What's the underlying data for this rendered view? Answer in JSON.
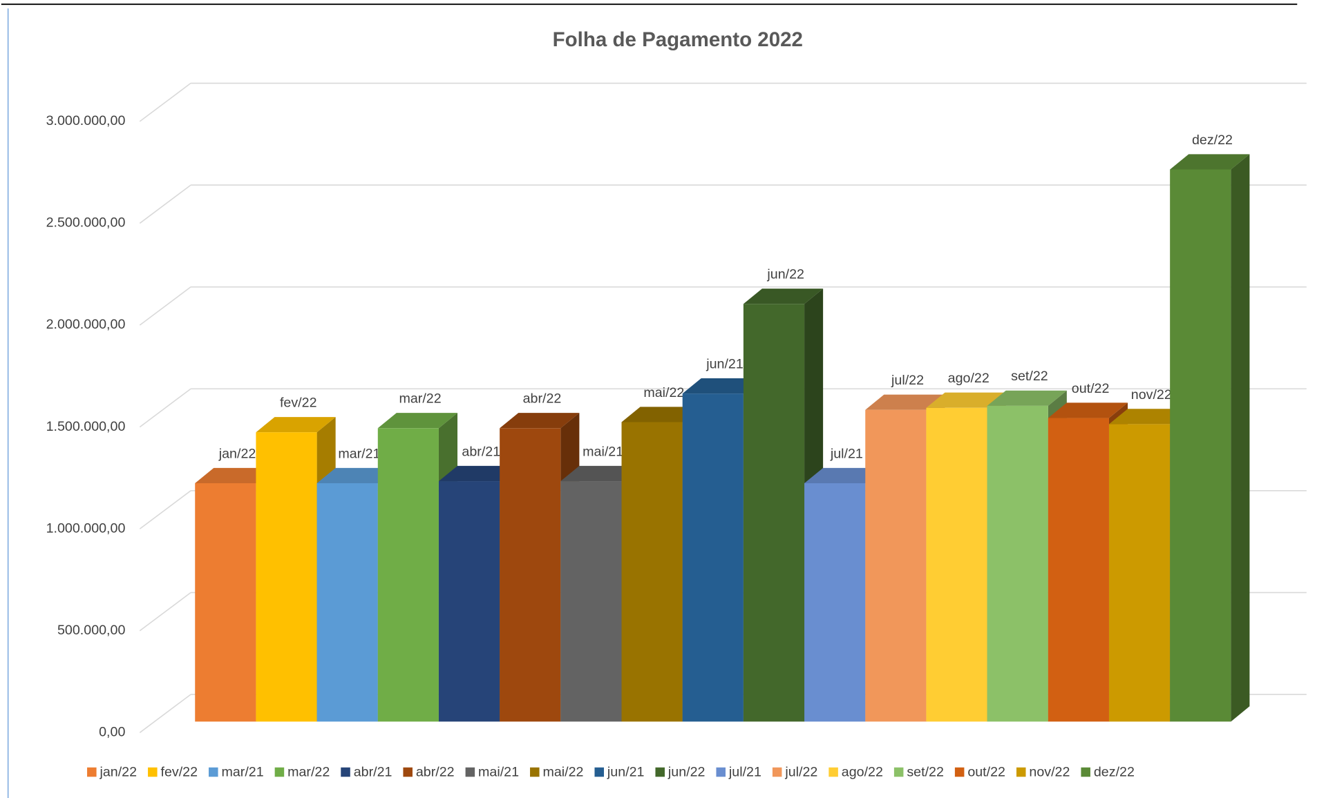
{
  "chart_data": {
    "type": "bar3d",
    "title": "Folha de Pagamento 2022",
    "ylim": [
      0,
      3000000
    ],
    "yticks": [
      {
        "value": 0,
        "label": "0,00"
      },
      {
        "value": 500000,
        "label": "500.000,00"
      },
      {
        "value": 1000000,
        "label": "1.000.000,00"
      },
      {
        "value": 1500000,
        "label": "1.500.000,00"
      },
      {
        "value": 2000000,
        "label": "2.000.000,00"
      },
      {
        "value": 2500000,
        "label": "2.500.000,00"
      },
      {
        "value": 3000000,
        "label": "3.000.000,00"
      }
    ],
    "grid": true,
    "legend": "bottom",
    "series": [
      {
        "name": "jan/22",
        "color": "#ed7d31",
        "values": [
          1170000
        ]
      },
      {
        "name": "fev/22",
        "color": "#ffc000",
        "values": [
          1420000
        ]
      },
      {
        "name": "mar/21",
        "color": "#5b9bd5",
        "values": [
          1170000
        ]
      },
      {
        "name": "mar/22",
        "color": "#70ad47",
        "values": [
          1440000
        ]
      },
      {
        "name": "abr/21",
        "color": "#264478",
        "values": [
          1180000
        ]
      },
      {
        "name": "abr/22",
        "color": "#9e480e",
        "values": [
          1440000
        ]
      },
      {
        "name": "mai/21",
        "color": "#636363",
        "values": [
          1180000
        ]
      },
      {
        "name": "mai/22",
        "color": "#997300",
        "values": [
          1470000
        ]
      },
      {
        "name": "jun/21",
        "color": "#255e91",
        "values": [
          1610000
        ]
      },
      {
        "name": "jun/22",
        "color": "#43682b",
        "values": [
          2050000
        ]
      },
      {
        "name": "jul/21",
        "color": "#698ed0",
        "values": [
          1170000
        ]
      },
      {
        "name": "jul/22",
        "color": "#f1975a",
        "values": [
          1530000
        ]
      },
      {
        "name": "ago/22",
        "color": "#ffcd33",
        "values": [
          1540000
        ]
      },
      {
        "name": "set/22",
        "color": "#8cc168",
        "values": [
          1550000
        ]
      },
      {
        "name": "out/22",
        "color": "#d26012",
        "values": [
          1490000
        ]
      },
      {
        "name": "nov/22",
        "color": "#cc9a00",
        "values": [
          1460000
        ]
      },
      {
        "name": "dez/22",
        "color": "#5a8a36",
        "values": [
          2710000
        ]
      }
    ]
  }
}
